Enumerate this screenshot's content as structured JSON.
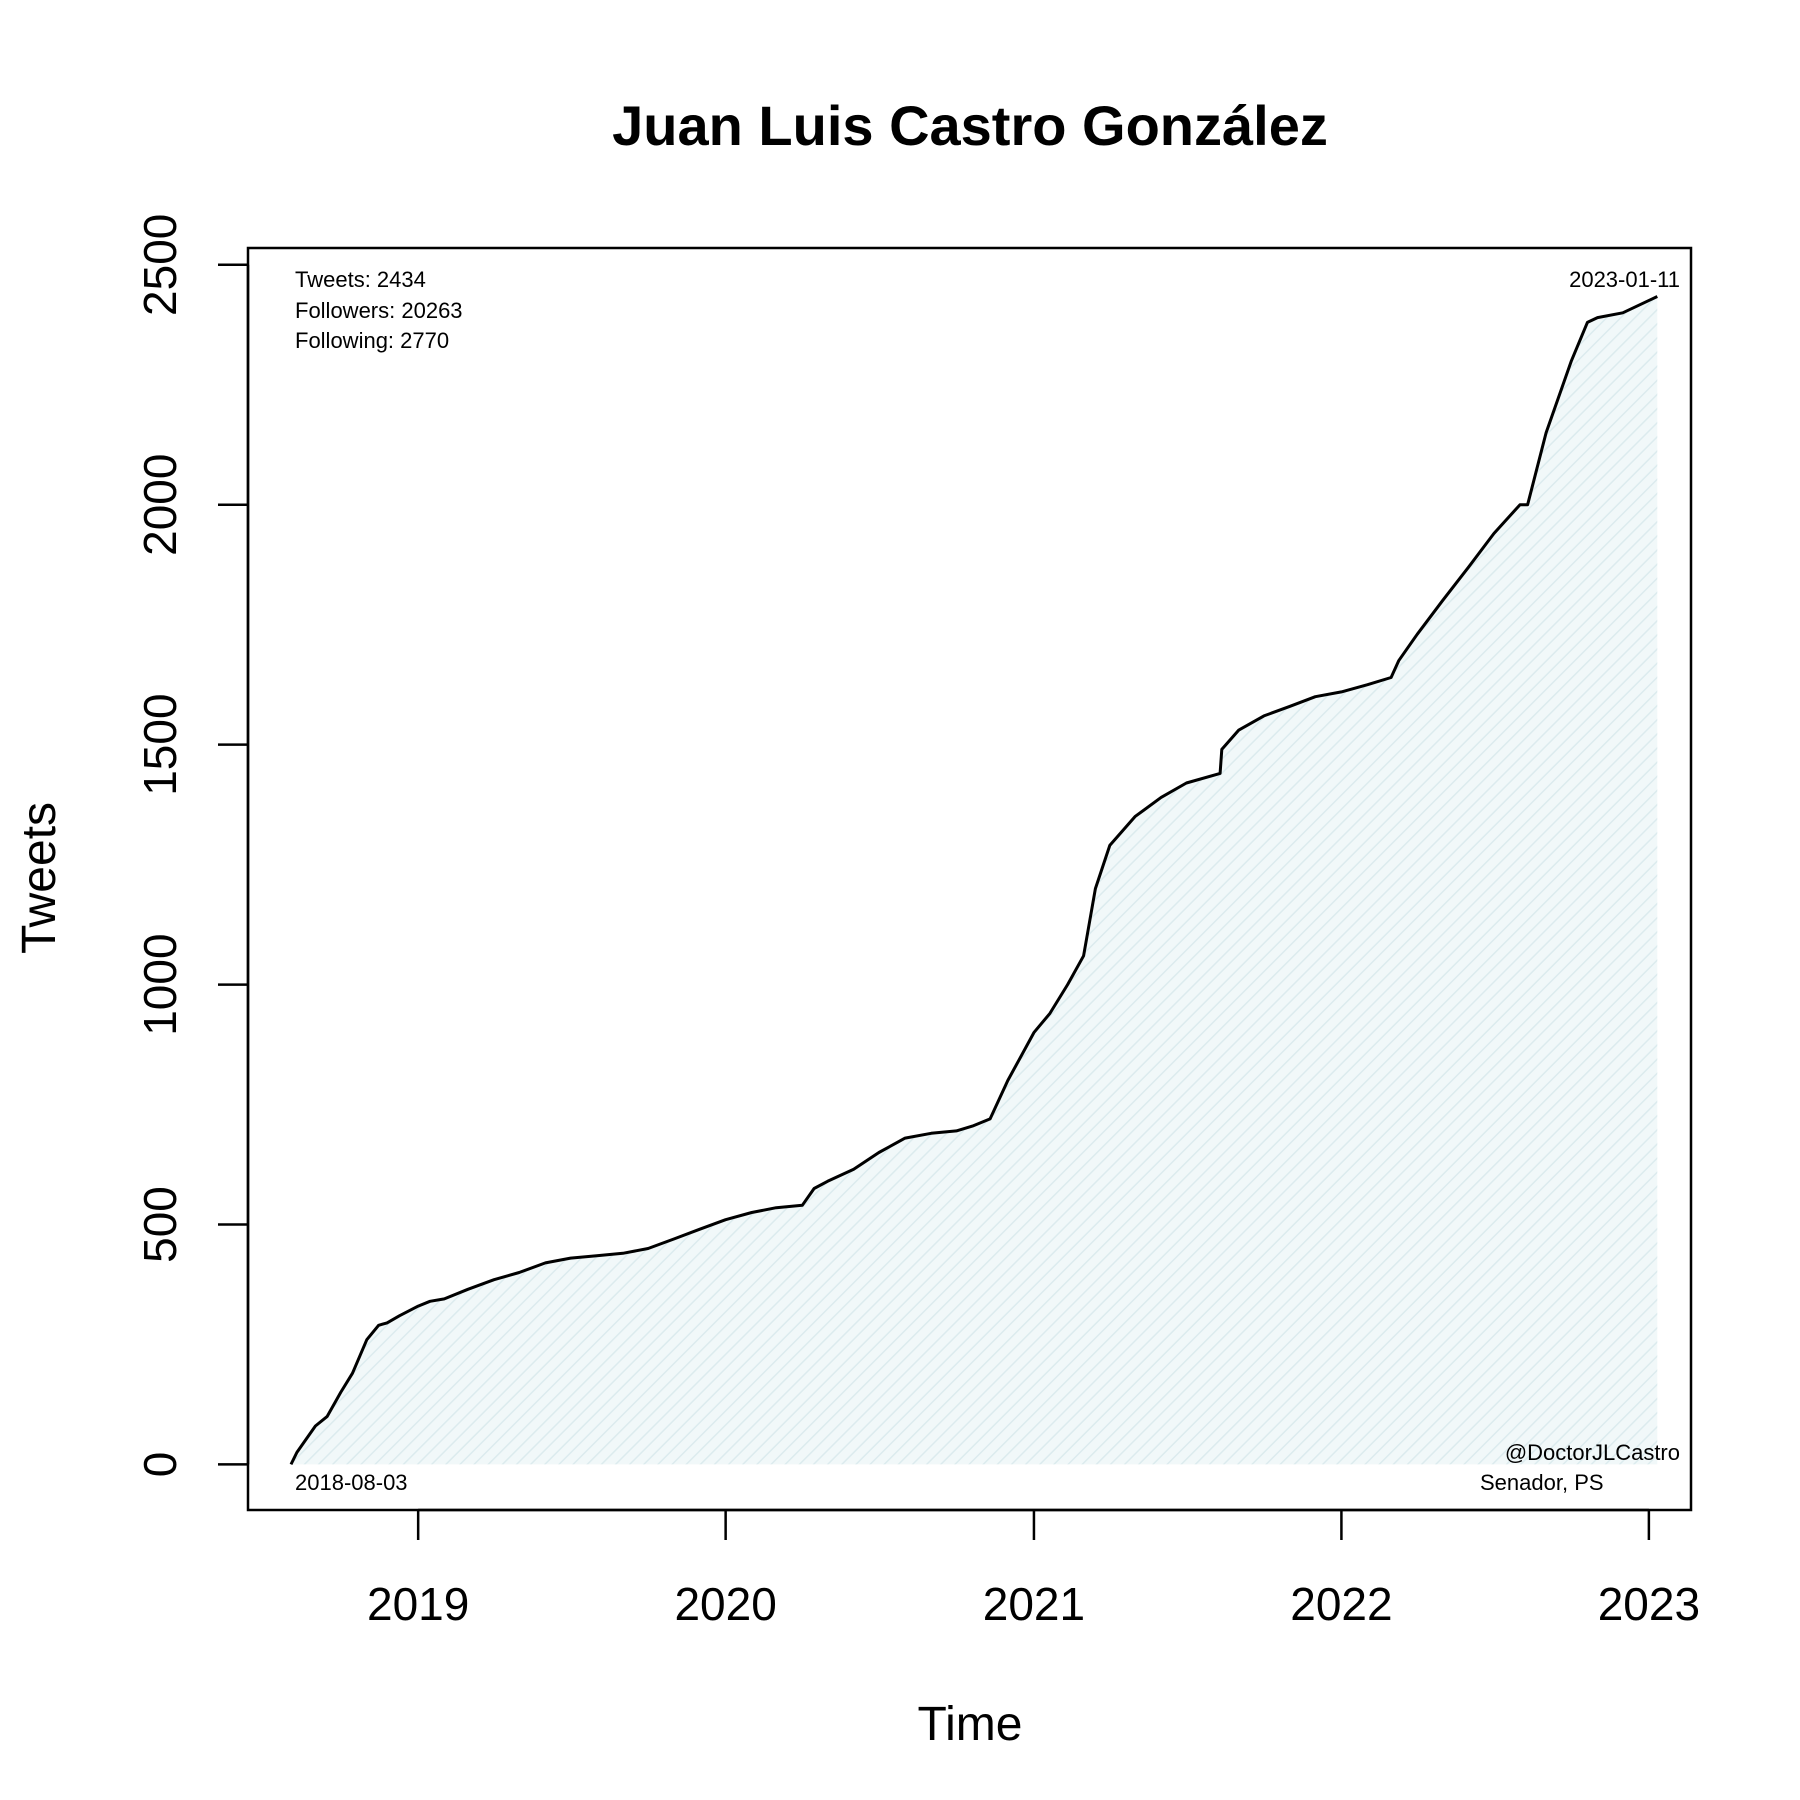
{
  "chart_data": {
    "type": "area",
    "title": "Juan Luis Castro González",
    "xlabel": "Time",
    "ylabel": "Tweets",
    "xlim": [
      "2018-06-13",
      "2023-02-20"
    ],
    "ylim": [
      -95,
      2535
    ],
    "x_ticks": [
      "2019-01-01",
      "2020-01-01",
      "2021-01-01",
      "2022-01-01",
      "2023-01-01"
    ],
    "x_tick_labels": [
      "2019",
      "2020",
      "2021",
      "2022",
      "2023"
    ],
    "y_ticks": [
      0,
      500,
      1000,
      1500,
      2000,
      2500
    ],
    "y_tick_labels": [
      "0",
      "500",
      "1000",
      "1500",
      "2000",
      "2500"
    ],
    "grid": false,
    "fill_color": "#e9f4f6",
    "line_color": "#000000",
    "annotations": {
      "stats": [
        "Tweets: 2434",
        "Followers: 20263",
        "Following: 2770"
      ],
      "start_date": "2018-08-03",
      "end_date": "2023-01-11",
      "handle": "@DoctorJLCastro",
      "role": "Senador, PS"
    },
    "series": [
      {
        "x": [
          "2018-08-03",
          "2018-08-10",
          "2018-08-20",
          "2018-09-01",
          "2018-09-15",
          "2018-10-01",
          "2018-10-15",
          "2018-11-01",
          "2018-11-15",
          "2018-11-25",
          "2018-12-10",
          "2019-01-01",
          "2019-01-15",
          "2019-02-01",
          "2019-03-01",
          "2019-04-01",
          "2019-05-01",
          "2019-06-01",
          "2019-07-01",
          "2019-08-01",
          "2019-09-01",
          "2019-10-01",
          "2019-11-01",
          "2019-12-01",
          "2020-01-01",
          "2020-02-01",
          "2020-03-01",
          "2020-04-01",
          "2020-04-15",
          "2020-05-01",
          "2020-06-01",
          "2020-07-01",
          "2020-08-01",
          "2020-09-01",
          "2020-10-01",
          "2020-10-20",
          "2020-11-10",
          "2020-12-01",
          "2021-01-01",
          "2021-01-20",
          "2021-02-10",
          "2021-03-01",
          "2021-03-15",
          "2021-04-01",
          "2021-05-01",
          "2021-06-01",
          "2021-07-01",
          "2021-08-10",
          "2021-08-12",
          "2021-09-01",
          "2021-10-01",
          "2021-11-01",
          "2021-12-01",
          "2022-01-01",
          "2022-02-01",
          "2022-03-01",
          "2022-03-10",
          "2022-04-01",
          "2022-05-01",
          "2022-06-01",
          "2022-07-01",
          "2022-08-01",
          "2022-08-10",
          "2022-09-01",
          "2022-10-01",
          "2022-10-20",
          "2022-11-01",
          "2022-12-01",
          "2023-01-11"
        ],
        "y": [
          0,
          25,
          50,
          80,
          100,
          150,
          190,
          260,
          290,
          295,
          310,
          330,
          340,
          345,
          365,
          385,
          400,
          420,
          430,
          435,
          440,
          450,
          470,
          490,
          510,
          525,
          535,
          540,
          575,
          590,
          615,
          650,
          680,
          690,
          695,
          705,
          720,
          800,
          900,
          940,
          1000,
          1060,
          1200,
          1290,
          1350,
          1390,
          1420,
          1440,
          1490,
          1530,
          1560,
          1580,
          1600,
          1610,
          1625,
          1640,
          1675,
          1730,
          1800,
          1870,
          1940,
          2000,
          2000,
          2150,
          2300,
          2380,
          2390,
          2400,
          2434
        ]
      }
    ]
  }
}
